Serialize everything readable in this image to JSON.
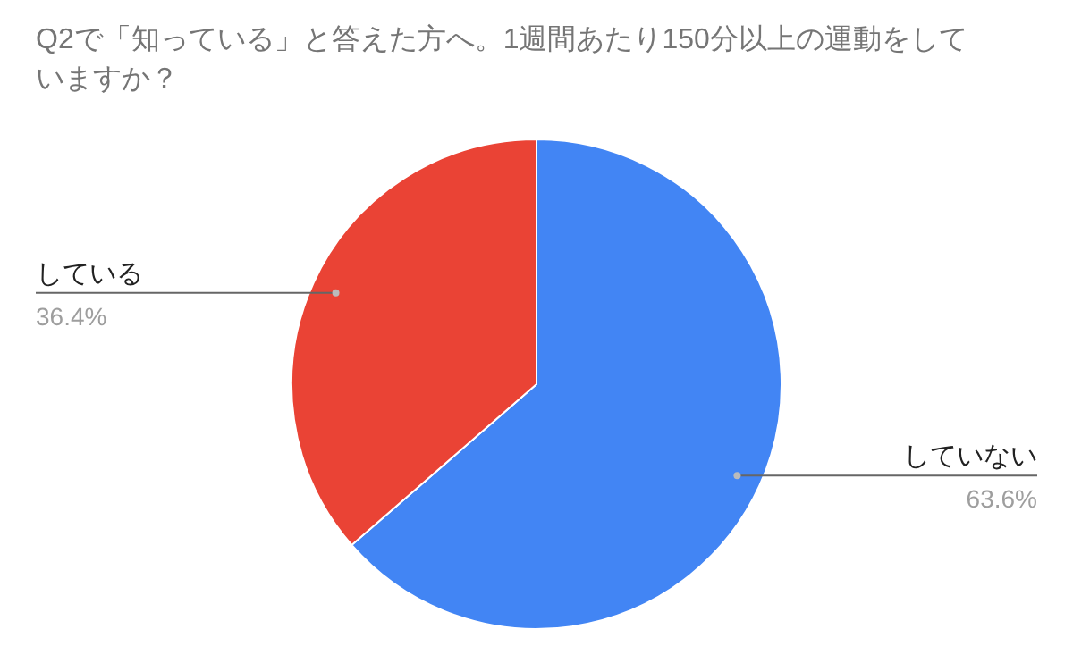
{
  "chart_data": {
    "type": "pie",
    "title": "Q2で「知っている」と答えた方へ。1週間あたり150分以上の運動をしていますか？",
    "categories": [
      "していない",
      "している"
    ],
    "values": [
      63.6,
      36.4
    ],
    "value_labels": [
      "63.6%",
      "36.4%"
    ],
    "colors": [
      "#4285f4",
      "#ea4335"
    ]
  }
}
